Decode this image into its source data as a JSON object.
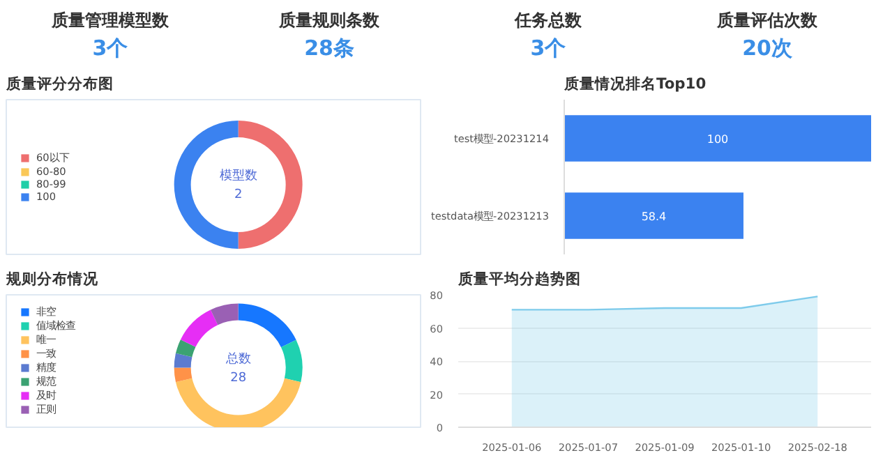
{
  "chart_data": [
    {
      "type": "other",
      "title": "质量管理模型数",
      "annotations": [
        "3个"
      ]
    },
    {
      "type": "other",
      "title": "质量规则条数",
      "annotations": [
        "28条"
      ]
    },
    {
      "type": "other",
      "title": "任务总数",
      "annotations": [
        "3个"
      ]
    },
    {
      "type": "other",
      "title": "质量评估次数",
      "annotations": [
        "20次"
      ]
    },
    {
      "type": "donut",
      "title": "质量评分分布图",
      "categories": [
        "60以下",
        "60-80",
        "80-99",
        "100"
      ],
      "values": [
        50,
        0,
        0,
        50
      ],
      "colors": [
        "#ee6f6f",
        "#fac858",
        "#1fcfa8",
        "#3b82f0"
      ],
      "legend": "left",
      "annotations": [
        "模型数",
        "2"
      ]
    },
    {
      "type": "bar",
      "title": "质量情况排名Top10",
      "orientation": "horizontal",
      "categories": [
        "test模型-20231214",
        "testdata模型-20231213"
      ],
      "values": [
        100,
        58.4
      ],
      "color": "#3b82f0",
      "data_labels": true,
      "tick_labels": "y"
    },
    {
      "type": "donut",
      "title": "规则分布情况",
      "categories": [
        "非空",
        "值域检查",
        "唯一",
        "一致",
        "精度",
        "规范",
        "及时",
        "正则"
      ],
      "values": [
        17.9,
        10.7,
        42.8,
        3.6,
        3.6,
        3.6,
        10.7,
        7.1
      ],
      "colors": [
        "#1677ff",
        "#1fd1b0",
        "#ffc35e",
        "#ff9248",
        "#5b7bd0",
        "#3ba272",
        "#e62ef5",
        "#9a60b4"
      ],
      "legend": "left",
      "annotations": [
        "总数",
        "28"
      ]
    },
    {
      "type": "area",
      "title": "质量平均分趋势图",
      "categories": [
        "2025-01-06",
        "2025-01-07",
        "2025-01-09",
        "2025-01-10",
        "2025-02-18"
      ],
      "values": [
        71,
        71,
        72,
        72,
        79
      ],
      "color": "#7ecbeb",
      "ylim": [
        0,
        80
      ],
      "yticks": [
        0,
        20,
        40,
        60,
        80
      ],
      "grid": "y"
    }
  ]
}
